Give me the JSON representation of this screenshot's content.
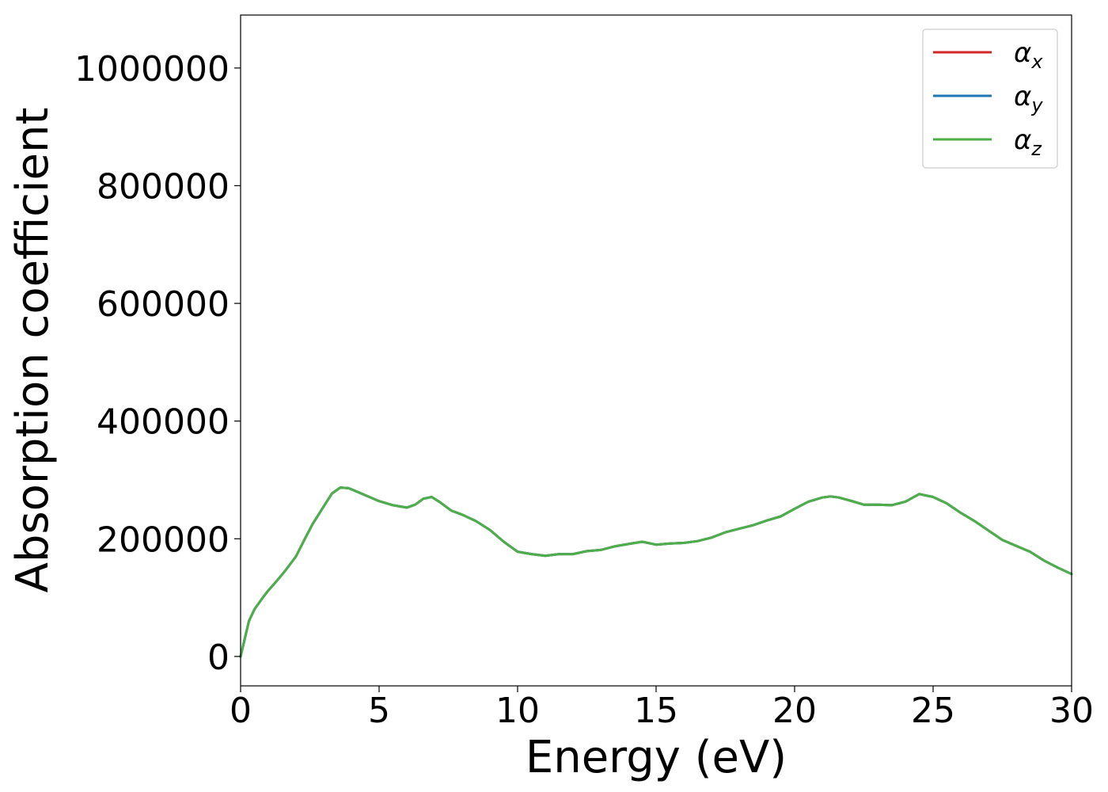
{
  "chart_data": {
    "type": "line",
    "xlabel": "Energy (eV)",
    "ylabel": "Absorption coefficient",
    "xlim": [
      0,
      30
    ],
    "ylim": [
      -50000,
      1090000
    ],
    "xticks": [
      0,
      5,
      10,
      15,
      20,
      25,
      30
    ],
    "xtick_labels": [
      "0",
      "5",
      "10",
      "15",
      "20",
      "25",
      "30"
    ],
    "yticks": [
      0,
      200000,
      400000,
      600000,
      800000,
      1000000
    ],
    "ytick_labels": [
      "0",
      "200000",
      "400000",
      "600000",
      "800000",
      "1000000"
    ],
    "grid": false,
    "legend_position": "top-right",
    "series": [
      {
        "name": "α_x",
        "symbol": "α",
        "subscript": "x",
        "color": "#d62728",
        "x": [
          0,
          0.1,
          0.3,
          0.5,
          0.8,
          1.0,
          1.3,
          1.6,
          2.0,
          2.3,
          2.6,
          3.0,
          3.3,
          3.6,
          3.9,
          4.2,
          4.6,
          5.0,
          5.5,
          6.0,
          6.3,
          6.6,
          6.9,
          7.2,
          7.6,
          8.0,
          8.5,
          9.0,
          9.5,
          10.0,
          10.5,
          11.0,
          11.5,
          12.0,
          12.5,
          13.0,
          13.5,
          14.0,
          14.5,
          15.0,
          15.5,
          16.0,
          16.5,
          17.0,
          17.5,
          18.0,
          18.5,
          19.0,
          19.5,
          20.0,
          20.5,
          21.0,
          21.3,
          21.6,
          22.0,
          22.5,
          23.0,
          23.5,
          24.0,
          24.5,
          25.0,
          25.5,
          26.0,
          26.5,
          27.0,
          27.5,
          28.0,
          28.5,
          29.0,
          29.5,
          30.0
        ],
        "y": [
          0,
          20000,
          60000,
          80000,
          100000,
          112000,
          128000,
          145000,
          170000,
          198000,
          225000,
          255000,
          277000,
          287000,
          286000,
          280000,
          272000,
          264000,
          257000,
          253000,
          258000,
          268000,
          271000,
          262000,
          248000,
          241000,
          230000,
          215000,
          195000,
          178000,
          174000,
          171000,
          174000,
          174000,
          179000,
          181000,
          187000,
          191000,
          195000,
          190000,
          192000,
          193000,
          196000,
          202000,
          211000,
          217000,
          223000,
          231000,
          238000,
          251000,
          263000,
          270000,
          272000,
          270000,
          265000,
          258000,
          258000,
          257000,
          263000,
          276000,
          271000,
          260000,
          244000,
          230000,
          214000,
          198000,
          188000,
          178000,
          163000,
          151000,
          140000
        ]
      },
      {
        "name": "α_y",
        "symbol": "α",
        "subscript": "y",
        "color": "#1f77b4",
        "x": [
          0,
          0.1,
          0.3,
          0.5,
          0.8,
          1.0,
          1.3,
          1.6,
          2.0,
          2.3,
          2.6,
          3.0,
          3.3,
          3.6,
          3.9,
          4.2,
          4.6,
          5.0,
          5.5,
          6.0,
          6.3,
          6.6,
          6.9,
          7.2,
          7.6,
          8.0,
          8.5,
          9.0,
          9.5,
          10.0,
          10.5,
          11.0,
          11.5,
          12.0,
          12.5,
          13.0,
          13.5,
          14.0,
          14.5,
          15.0,
          15.5,
          16.0,
          16.5,
          17.0,
          17.5,
          18.0,
          18.5,
          19.0,
          19.5,
          20.0,
          20.5,
          21.0,
          21.3,
          21.6,
          22.0,
          22.5,
          23.0,
          23.5,
          24.0,
          24.5,
          25.0,
          25.5,
          26.0,
          26.5,
          27.0,
          27.5,
          28.0,
          28.5,
          29.0,
          29.5,
          30.0
        ],
        "y": [
          0,
          20000,
          60000,
          80000,
          100000,
          112000,
          128000,
          145000,
          170000,
          198000,
          225000,
          255000,
          277000,
          287000,
          286000,
          280000,
          272000,
          264000,
          257000,
          253000,
          258000,
          268000,
          271000,
          262000,
          248000,
          241000,
          230000,
          215000,
          195000,
          178000,
          174000,
          171000,
          174000,
          174000,
          179000,
          181000,
          187000,
          191000,
          195000,
          190000,
          192000,
          193000,
          196000,
          202000,
          211000,
          217000,
          223000,
          231000,
          238000,
          251000,
          263000,
          270000,
          272000,
          270000,
          265000,
          258000,
          258000,
          257000,
          263000,
          276000,
          271000,
          260000,
          244000,
          230000,
          214000,
          198000,
          188000,
          178000,
          163000,
          151000,
          140000
        ]
      },
      {
        "name": "α_z",
        "symbol": "α",
        "subscript": "z",
        "color": "#4daf4a",
        "x": [
          0,
          0.1,
          0.3,
          0.5,
          0.8,
          1.0,
          1.3,
          1.6,
          2.0,
          2.3,
          2.6,
          3.0,
          3.3,
          3.6,
          3.9,
          4.2,
          4.6,
          5.0,
          5.5,
          6.0,
          6.3,
          6.6,
          6.9,
          7.2,
          7.6,
          8.0,
          8.5,
          9.0,
          9.5,
          10.0,
          10.5,
          11.0,
          11.5,
          12.0,
          12.5,
          13.0,
          13.5,
          14.0,
          14.5,
          15.0,
          15.5,
          16.0,
          16.5,
          17.0,
          17.5,
          18.0,
          18.5,
          19.0,
          19.5,
          20.0,
          20.5,
          21.0,
          21.3,
          21.6,
          22.0,
          22.5,
          23.0,
          23.5,
          24.0,
          24.5,
          25.0,
          25.5,
          26.0,
          26.5,
          27.0,
          27.5,
          28.0,
          28.5,
          29.0,
          29.5,
          30.0
        ],
        "y": [
          0,
          20000,
          60000,
          80000,
          100000,
          112000,
          128000,
          145000,
          170000,
          198000,
          225000,
          255000,
          277000,
          287000,
          286000,
          280000,
          272000,
          264000,
          257000,
          253000,
          258000,
          268000,
          271000,
          262000,
          248000,
          241000,
          230000,
          215000,
          195000,
          178000,
          174000,
          171000,
          174000,
          174000,
          179000,
          181000,
          187000,
          191000,
          195000,
          190000,
          192000,
          193000,
          196000,
          202000,
          211000,
          217000,
          223000,
          231000,
          238000,
          251000,
          263000,
          270000,
          272000,
          270000,
          265000,
          258000,
          258000,
          257000,
          263000,
          276000,
          271000,
          260000,
          244000,
          230000,
          214000,
          198000,
          188000,
          178000,
          163000,
          151000,
          140000
        ]
      }
    ]
  }
}
